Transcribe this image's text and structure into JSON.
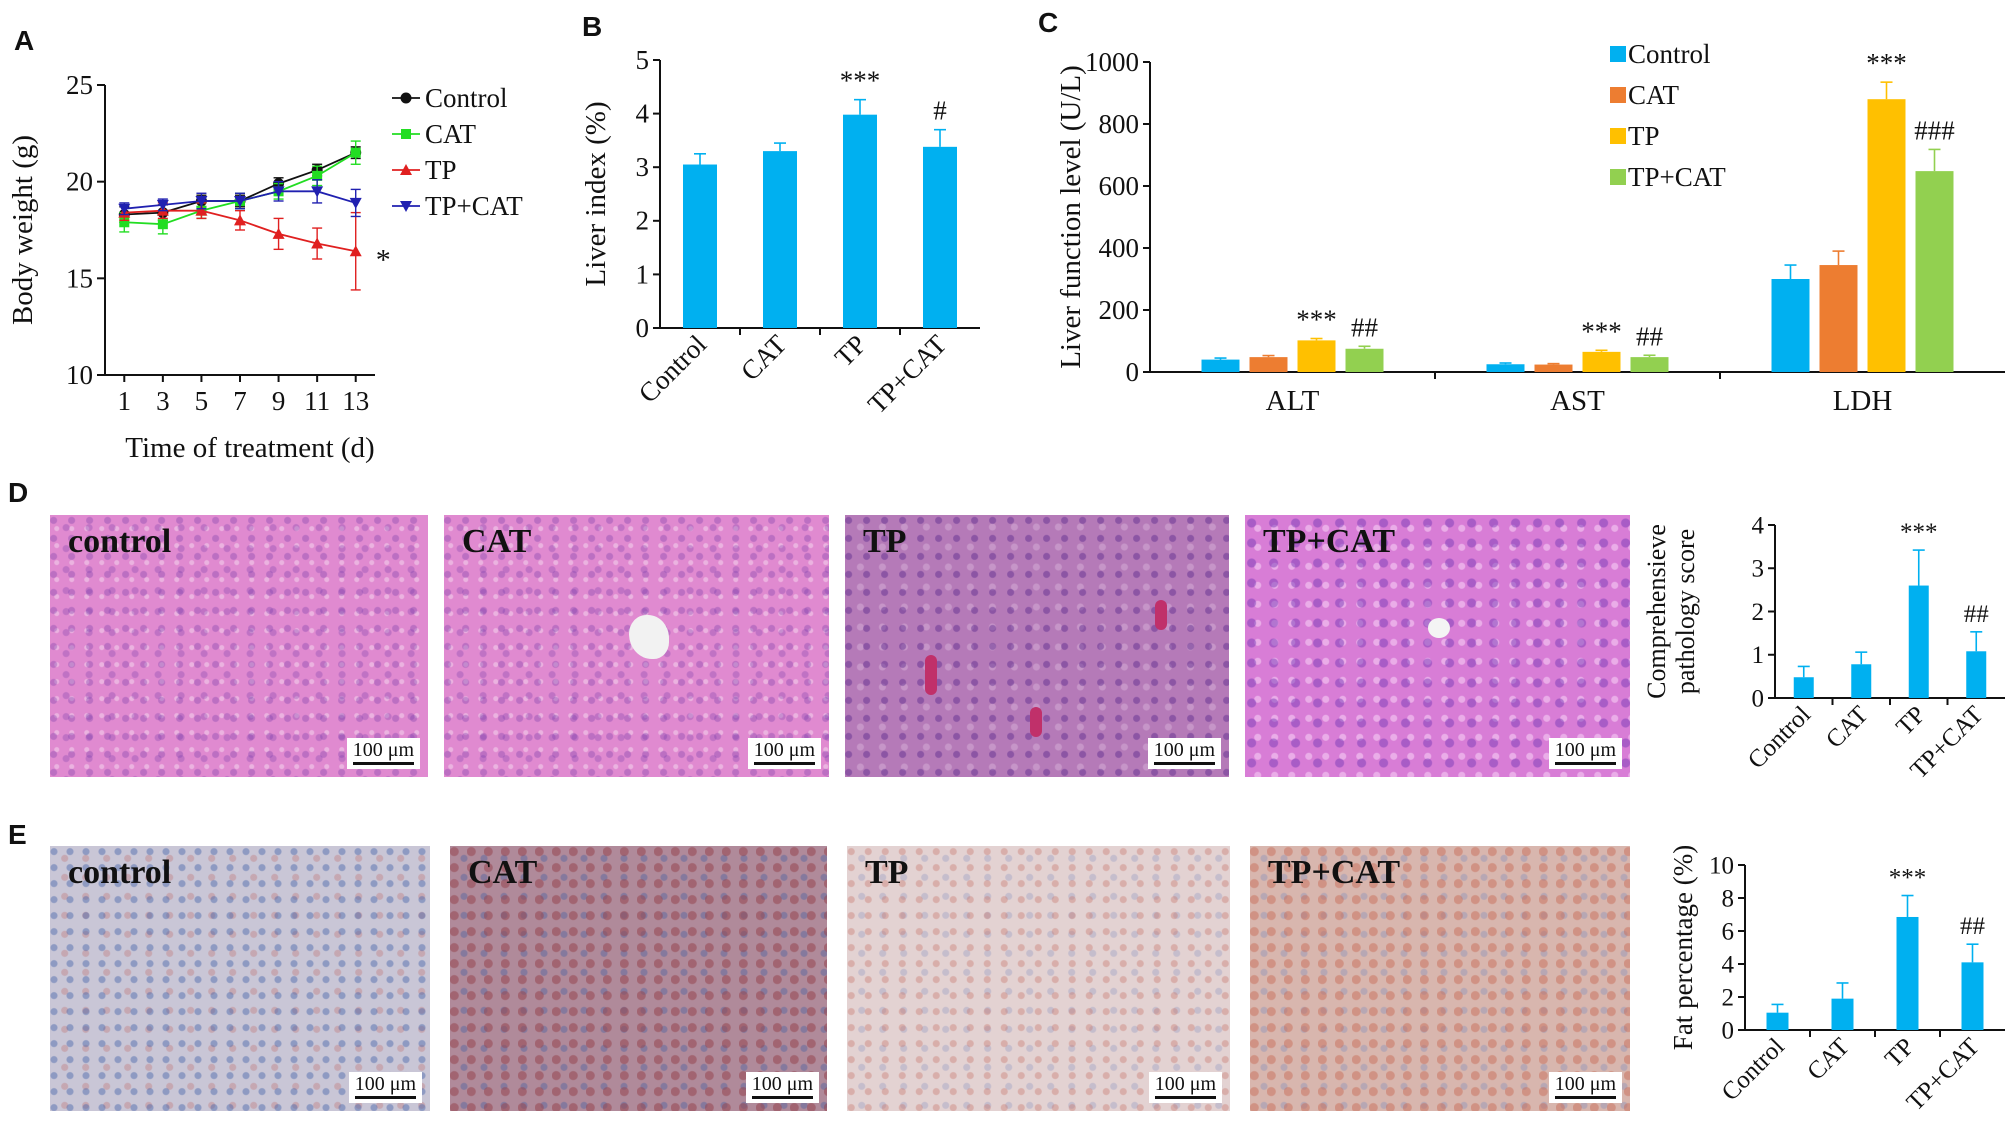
{
  "panel_letters": {
    "a": "A",
    "b": "B",
    "c": "C",
    "d": "D",
    "e": "E"
  },
  "scale_bar_label": "100 μm",
  "micrographs": {
    "d": [
      "control",
      "CAT",
      "TP",
      "TP+CAT"
    ],
    "e": [
      "control",
      "CAT",
      "TP",
      "TP+CAT"
    ]
  },
  "colors": {
    "control": "#00b0f0",
    "cat": "#ed7d31",
    "tp": "#ffc000",
    "tpcat": "#92d050",
    "line_control": "#111111",
    "line_cat": "#22dd22",
    "line_tp": "#e02020",
    "line_tpcat": "#2020b0"
  },
  "chart_data": [
    {
      "type": "line",
      "panel": "A",
      "xlabel": "Time of treatment (d)",
      "ylabel": "Body weight (g)",
      "x": [
        1,
        3,
        5,
        7,
        9,
        11,
        13
      ],
      "xlim": [
        0,
        14
      ],
      "ylim": [
        10,
        25
      ],
      "yticks": [
        10,
        15,
        20,
        25
      ],
      "legend_position": "top-right",
      "series": [
        {
          "name": "Control",
          "values": [
            18.3,
            18.4,
            19.0,
            19.0,
            19.9,
            20.6,
            21.5
          ],
          "errors": [
            0.4,
            0.4,
            0.3,
            0.3,
            0.3,
            0.3,
            0.3
          ]
        },
        {
          "name": "CAT",
          "values": [
            17.9,
            17.8,
            18.5,
            19.0,
            19.5,
            20.3,
            21.5
          ],
          "errors": [
            0.5,
            0.5,
            0.4,
            0.4,
            0.4,
            0.5,
            0.6
          ]
        },
        {
          "name": "TP",
          "values": [
            18.4,
            18.5,
            18.5,
            18.0,
            17.3,
            16.8,
            16.4
          ],
          "errors": [
            0.4,
            0.4,
            0.4,
            0.5,
            0.8,
            0.8,
            2.0
          ]
        },
        {
          "name": "TP+CAT",
          "values": [
            18.6,
            18.8,
            19.0,
            19.0,
            19.5,
            19.5,
            18.9
          ],
          "errors": [
            0.3,
            0.3,
            0.4,
            0.4,
            0.5,
            0.6,
            0.7
          ]
        }
      ],
      "annotations": [
        {
          "x": 13,
          "text": "*"
        }
      ]
    },
    {
      "type": "bar",
      "panel": "B",
      "ylabel": "Liver index (%)",
      "categories": [
        "Control",
        "CAT",
        "TP",
        "TP+CAT"
      ],
      "values": [
        3.05,
        3.3,
        3.98,
        3.38
      ],
      "errors": [
        0.2,
        0.15,
        0.28,
        0.32
      ],
      "ylim": [
        0,
        5
      ],
      "yticks": [
        0,
        1,
        2,
        3,
        4,
        5
      ],
      "annotations": [
        "",
        "",
        "***",
        "#"
      ]
    },
    {
      "type": "bar",
      "panel": "C",
      "ylabel": "Liver function level (U/L)",
      "categories": [
        "ALT",
        "AST",
        "LDH"
      ],
      "ylim": [
        0,
        1000
      ],
      "yticks": [
        0,
        200,
        400,
        600,
        800,
        1000
      ],
      "legend_position": "top-right",
      "series": [
        {
          "name": "Control",
          "values": [
            40,
            25,
            300
          ],
          "errors": [
            5,
            4,
            45
          ]
        },
        {
          "name": "CAT",
          "values": [
            48,
            24,
            345
          ],
          "errors": [
            5,
            3,
            45
          ]
        },
        {
          "name": "TP",
          "values": [
            102,
            65,
            880
          ],
          "errors": [
            6,
            5,
            55
          ]
        },
        {
          "name": "TP+CAT",
          "values": [
            75,
            48,
            648
          ],
          "errors": [
            8,
            6,
            70
          ]
        }
      ],
      "annotations": [
        {
          "category": "ALT",
          "series": "TP",
          "text": "***"
        },
        {
          "category": "ALT",
          "series": "TP+CAT",
          "text": "##"
        },
        {
          "category": "AST",
          "series": "TP",
          "text": "***"
        },
        {
          "category": "AST",
          "series": "TP+CAT",
          "text": "##"
        },
        {
          "category": "LDH",
          "series": "TP",
          "text": "***"
        },
        {
          "category": "LDH",
          "series": "TP+CAT",
          "text": "###"
        }
      ]
    },
    {
      "type": "bar",
      "panel": "D",
      "ylabel": [
        "Comprehensieve",
        "pathology score"
      ],
      "categories": [
        "Control",
        "CAT",
        "TP",
        "TP+CAT"
      ],
      "values": [
        0.48,
        0.78,
        2.6,
        1.08
      ],
      "errors": [
        0.25,
        0.28,
        0.82,
        0.45
      ],
      "ylim": [
        0,
        4
      ],
      "yticks": [
        0,
        1,
        2,
        3,
        4
      ],
      "annotations": [
        "",
        "",
        "***",
        "##"
      ]
    },
    {
      "type": "bar",
      "panel": "E",
      "ylabel": "Fat percentage (%)",
      "categories": [
        "Control",
        "CAT",
        "TP",
        "TP+CAT"
      ],
      "values": [
        1.05,
        1.9,
        6.85,
        4.1
      ],
      "errors": [
        0.5,
        0.95,
        1.3,
        1.1
      ],
      "ylim": [
        0,
        10
      ],
      "yticks": [
        0,
        2,
        4,
        6,
        8,
        10
      ],
      "annotations": [
        "",
        "",
        "***",
        "##"
      ]
    }
  ]
}
